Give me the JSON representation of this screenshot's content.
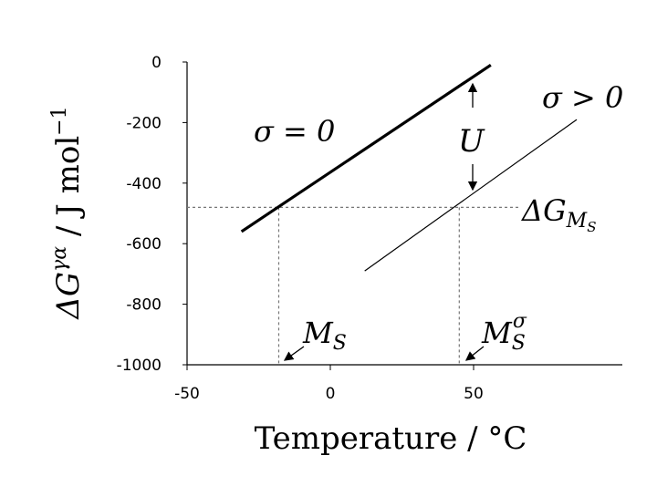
{
  "chart_data": {
    "type": "line",
    "xlabel": {
      "text": "Temperature / °C"
    },
    "ylabel": {
      "main": "ΔG",
      "sup": "γα",
      "rest": " / J mol",
      "sup2": "−1"
    },
    "xlim": [
      -50,
      100
    ],
    "ylim": [
      -1000,
      0
    ],
    "xticks": [
      -50,
      0,
      50
    ],
    "yticks": [
      -1000,
      -800,
      -600,
      -400,
      -200,
      0
    ],
    "series": [
      {
        "name": "σ = 0",
        "color": "#000000",
        "width": 3.2,
        "x": [
          -31,
          56
        ],
        "y": [
          -560,
          -10
        ]
      },
      {
        "name": "σ > 0",
        "color": "#000000",
        "width": 1.2,
        "x": [
          12,
          86
        ],
        "y": [
          -690,
          -190
        ]
      }
    ],
    "guides": {
      "y": -480,
      "x": [
        -18,
        45
      ],
      "color": "#777777"
    },
    "annotations": {
      "u": "U",
      "dg": {
        "main": "ΔG",
        "sub": "M",
        "subsub": "S"
      },
      "ms": {
        "main": "M",
        "sub": "S"
      },
      "mss": {
        "main": "M",
        "sub": "S",
        "sup": "σ"
      }
    }
  }
}
